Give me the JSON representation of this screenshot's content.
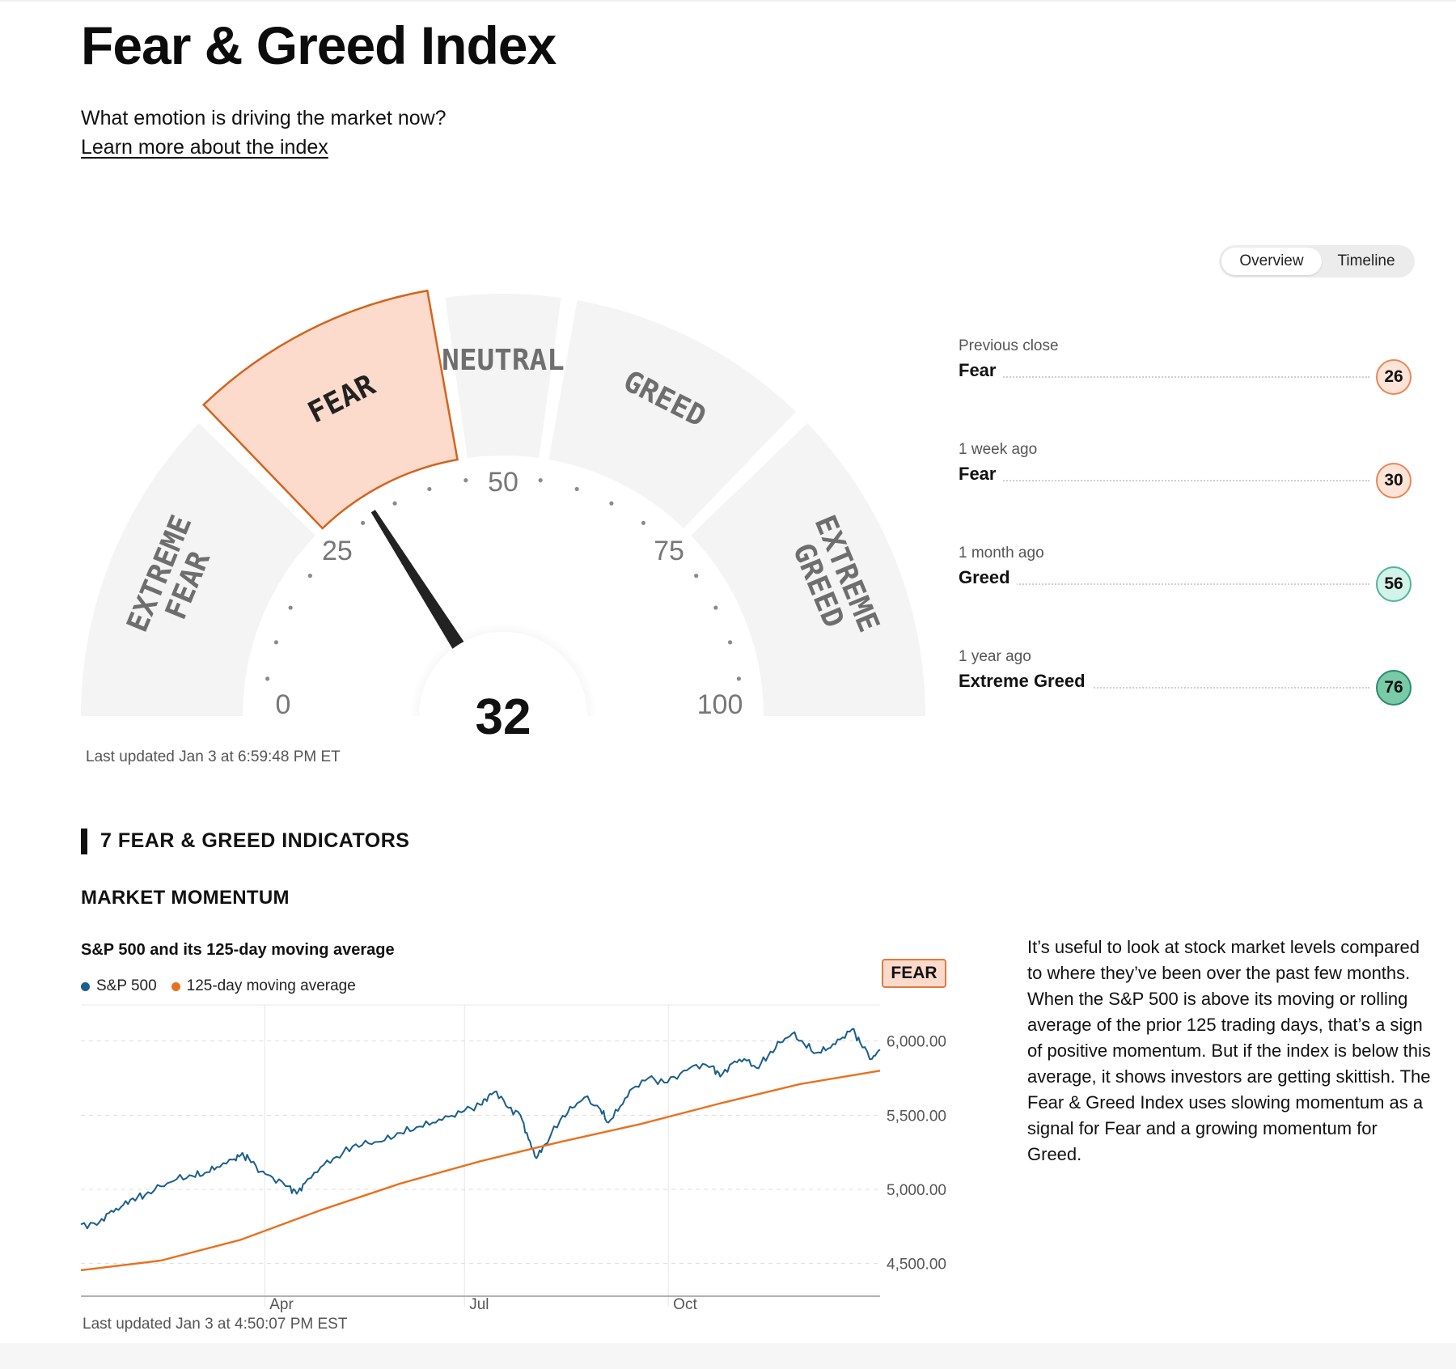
{
  "header": {
    "title": "Fear & Greed Index",
    "subtitle": "What emotion is driving the market now?",
    "learn_more": "Learn more about the index"
  },
  "view_toggle": {
    "options": [
      "Overview",
      "Timeline"
    ],
    "selected": "Overview"
  },
  "gauge": {
    "value": 32,
    "rating": "Fear",
    "scale_min": 0,
    "scale_max": 100,
    "tick_labels": [
      "0",
      "25",
      "50",
      "75",
      "100"
    ],
    "segments": [
      {
        "label": "EXTREME FEAR",
        "from": 0,
        "to": 25
      },
      {
        "label": "FEAR",
        "from": 25,
        "to": 45
      },
      {
        "label": "NEUTRAL",
        "from": 45,
        "to": 55
      },
      {
        "label": "GREED",
        "from": 55,
        "to": 75
      },
      {
        "label": "EXTREME GREED",
        "from": 75,
        "to": 100
      }
    ],
    "colors": {
      "segment": "#f4f4f4",
      "active_fill": "#fddbcc",
      "active_stroke": "#d3641d",
      "segment_text": "#6e6e6e",
      "active_text": "#222222",
      "needle": "#222222"
    },
    "last_updated": "Last updated Jan 3 at 6:59:48 PM ET"
  },
  "history": [
    {
      "label": "Previous close",
      "rating": "Fear",
      "value": "26",
      "color": "#e9865a",
      "fill": "#fde4d7"
    },
    {
      "label": "1 week ago",
      "rating": "Fear",
      "value": "30",
      "color": "#e9865a",
      "fill": "#fde4d7"
    },
    {
      "label": "1 month ago",
      "rating": "Greed",
      "value": "56",
      "color": "#4fb59a",
      "fill": "#d3f2e8"
    },
    {
      "label": "1 year ago",
      "rating": "Extreme Greed",
      "value": "76",
      "color": "#2a8a6a",
      "fill": "#79caa9"
    }
  ],
  "indicators": {
    "section_title": "7 FEAR & GREED INDICATORS",
    "momentum": {
      "title": "MARKET MOMENTUM",
      "chart_title": "S&P 500 and its 125-day moving average",
      "rating": "FEAR",
      "description": "It’s useful to look at stock market levels compared to where they’ve been over the past few months. When the S&P 500 is above its moving or rolling average of the prior 125 trading days, that’s a sign of positive momentum. But if the index is below this average, it shows investors are getting skittish. The Fear & Greed Index uses slowing momentum as a signal for Fear and a growing momentum for Greed.",
      "last_updated": "Last updated Jan 3 at 4:50:07 PM EST"
    }
  },
  "chart_data": {
    "type": "line",
    "title": "S&P 500 and its 125-day moving average",
    "x_tick_labels": [
      "Apr",
      "Jul",
      "Oct"
    ],
    "x_tick_positions": [
      0.23,
      0.48,
      0.735
    ],
    "ylim": [
      4400,
      6200
    ],
    "y_ticks": [
      {
        "value": 4500,
        "label": "4,500.00"
      },
      {
        "value": 5000,
        "label": "5,000.00"
      },
      {
        "value": 5500,
        "label": "5,500.00"
      },
      {
        "value": 6000,
        "label": "6,000.00"
      }
    ],
    "grid": true,
    "legend": "top-left",
    "series": [
      {
        "name": "S&P 500",
        "color": "#1a5e8c",
        "points": [
          [
            0.0,
            4764
          ],
          [
            0.02,
            4760
          ],
          [
            0.035,
            4840
          ],
          [
            0.05,
            4880
          ],
          [
            0.065,
            4940
          ],
          [
            0.08,
            4960
          ],
          [
            0.1,
            5020
          ],
          [
            0.12,
            5070
          ],
          [
            0.14,
            5090
          ],
          [
            0.155,
            5110
          ],
          [
            0.17,
            5150
          ],
          [
            0.19,
            5200
          ],
          [
            0.2,
            5230
          ],
          [
            0.21,
            5210
          ],
          [
            0.225,
            5120
          ],
          [
            0.24,
            5080
          ],
          [
            0.26,
            5020
          ],
          [
            0.27,
            4970
          ],
          [
            0.28,
            5040
          ],
          [
            0.3,
            5150
          ],
          [
            0.32,
            5220
          ],
          [
            0.34,
            5290
          ],
          [
            0.36,
            5310
          ],
          [
            0.38,
            5330
          ],
          [
            0.4,
            5380
          ],
          [
            0.42,
            5420
          ],
          [
            0.44,
            5450
          ],
          [
            0.46,
            5490
          ],
          [
            0.48,
            5530
          ],
          [
            0.5,
            5570
          ],
          [
            0.51,
            5630
          ],
          [
            0.52,
            5660
          ],
          [
            0.535,
            5550
          ],
          [
            0.55,
            5500
          ],
          [
            0.56,
            5340
          ],
          [
            0.57,
            5210
          ],
          [
            0.58,
            5300
          ],
          [
            0.6,
            5470
          ],
          [
            0.615,
            5550
          ],
          [
            0.63,
            5620
          ],
          [
            0.65,
            5540
          ],
          [
            0.66,
            5450
          ],
          [
            0.675,
            5560
          ],
          [
            0.69,
            5680
          ],
          [
            0.71,
            5750
          ],
          [
            0.73,
            5720
          ],
          [
            0.75,
            5780
          ],
          [
            0.77,
            5840
          ],
          [
            0.79,
            5830
          ],
          [
            0.8,
            5760
          ],
          [
            0.815,
            5850
          ],
          [
            0.83,
            5880
          ],
          [
            0.845,
            5820
          ],
          [
            0.86,
            5900
          ],
          [
            0.875,
            5990
          ],
          [
            0.89,
            6050
          ],
          [
            0.905,
            5980
          ],
          [
            0.92,
            5920
          ],
          [
            0.935,
            5950
          ],
          [
            0.95,
            6010
          ],
          [
            0.965,
            6080
          ],
          [
            0.975,
            5990
          ],
          [
            0.99,
            5880
          ],
          [
            1.0,
            5942
          ]
        ]
      },
      {
        "name": "125-day moving average",
        "color": "#e8711f",
        "points": [
          [
            0.0,
            4455
          ],
          [
            0.1,
            4520
          ],
          [
            0.2,
            4660
          ],
          [
            0.3,
            4860
          ],
          [
            0.4,
            5040
          ],
          [
            0.5,
            5190
          ],
          [
            0.6,
            5320
          ],
          [
            0.7,
            5440
          ],
          [
            0.8,
            5580
          ],
          [
            0.9,
            5710
          ],
          [
            1.0,
            5800
          ]
        ]
      }
    ]
  }
}
